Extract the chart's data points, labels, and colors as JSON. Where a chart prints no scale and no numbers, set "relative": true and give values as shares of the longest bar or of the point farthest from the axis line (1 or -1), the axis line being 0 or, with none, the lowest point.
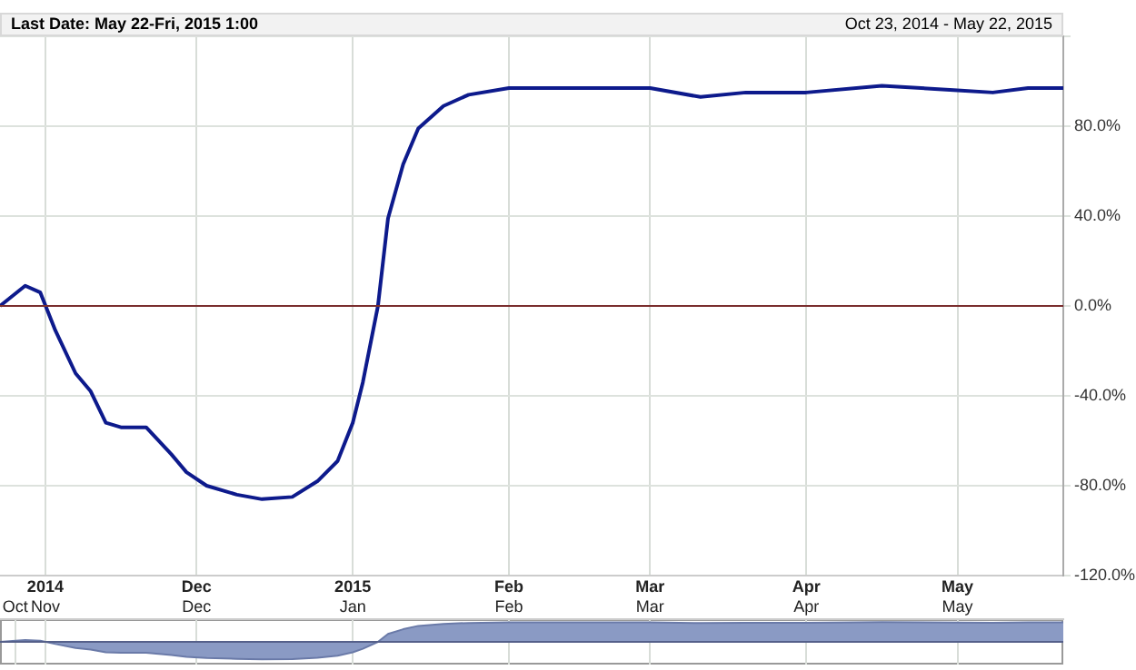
{
  "chart_data": [
    {
      "type": "line",
      "title": "Last Date: May 22-Fri, 2015 1:00",
      "subtitle": "Oct 23, 2014 - May 22, 2015",
      "x": [
        "2014-10-23",
        "2014-10-28",
        "2014-10-31",
        "2014-11-03",
        "2014-11-07",
        "2014-11-10",
        "2014-11-13",
        "2014-11-16",
        "2014-11-21",
        "2014-11-26",
        "2014-11-29",
        "2014-12-03",
        "2014-12-09",
        "2014-12-14",
        "2014-12-20",
        "2014-12-25",
        "2014-12-29",
        "2015-01-01",
        "2015-01-03",
        "2015-01-06",
        "2015-01-08",
        "2015-01-11",
        "2015-01-14",
        "2015-01-19",
        "2015-01-24",
        "2015-02-01",
        "2015-02-15",
        "2015-03-01",
        "2015-03-11",
        "2015-03-20",
        "2015-04-01",
        "2015-04-16",
        "2015-05-01",
        "2015-05-08",
        "2015-05-15",
        "2015-05-22"
      ],
      "series": [
        {
          "color": "#0d1a8c",
          "values": [
            0,
            9,
            6,
            -11,
            -30,
            -38,
            -52,
            -54,
            -54,
            -66,
            -74,
            -80,
            -84,
            -86,
            -85,
            -78,
            -69,
            -52,
            -34,
            0,
            39,
            63,
            79,
            89,
            94,
            97,
            97,
            97,
            93,
            95,
            95,
            98,
            96,
            95,
            97,
            97
          ]
        }
      ],
      "xlim": [
        "2014-10-23",
        "2015-05-22"
      ],
      "xticks": [
        {
          "value": "2014-11-01",
          "label": "2014"
        },
        {
          "value": "2014-12-01",
          "label": "Dec"
        },
        {
          "value": "2015-01-01",
          "label": "2015"
        },
        {
          "value": "2015-02-01",
          "label": "Feb"
        },
        {
          "value": "2015-03-01",
          "label": "Mar"
        },
        {
          "value": "2015-04-01",
          "label": "Apr"
        },
        {
          "value": "2015-05-01",
          "label": "May"
        }
      ],
      "ylim": [
        -120,
        120
      ],
      "yticks": [
        {
          "value": -120,
          "label": "-120.0%"
        },
        {
          "value": -80,
          "label": "-80.0%"
        },
        {
          "value": -40,
          "label": "-40.0%"
        },
        {
          "value": 0,
          "label": "0.0%"
        },
        {
          "value": 40,
          "label": "40.0%"
        },
        {
          "value": 80,
          "label": "80.0%"
        },
        {
          "value": 120,
          "label": null
        }
      ],
      "ref_lines": [
        {
          "axis": "y",
          "value": 0,
          "color": "#7a2e2e"
        }
      ],
      "grid": true
    },
    {
      "type": "area",
      "relative": true,
      "x": [
        "2014-10-23",
        "2014-10-28",
        "2014-10-31",
        "2014-11-03",
        "2014-11-07",
        "2014-11-10",
        "2014-11-13",
        "2014-11-16",
        "2014-11-21",
        "2014-11-26",
        "2014-11-29",
        "2014-12-03",
        "2014-12-09",
        "2014-12-14",
        "2014-12-20",
        "2014-12-25",
        "2014-12-29",
        "2015-01-01",
        "2015-01-03",
        "2015-01-06",
        "2015-01-08",
        "2015-01-11",
        "2015-01-14",
        "2015-01-19",
        "2015-01-24",
        "2015-02-01",
        "2015-02-15",
        "2015-03-01",
        "2015-03-11",
        "2015-03-20",
        "2015-04-01",
        "2015-04-16",
        "2015-05-01",
        "2015-05-08",
        "2015-05-15",
        "2015-05-22"
      ],
      "series": [
        {
          "color": "#8a9ac4",
          "values": [
            0,
            0.09,
            0.06,
            -0.11,
            -0.31,
            -0.39,
            -0.53,
            -0.55,
            -0.55,
            -0.67,
            -0.76,
            -0.82,
            -0.86,
            -0.88,
            -0.87,
            -0.8,
            -0.7,
            -0.53,
            -0.35,
            0,
            0.4,
            0.64,
            0.81,
            0.91,
            0.96,
            0.99,
            0.99,
            0.99,
            0.95,
            0.97,
            0.97,
            1,
            0.98,
            0.97,
            0.99,
            0.99
          ]
        }
      ],
      "xlim": [
        "2014-10-23",
        "2015-05-22"
      ],
      "xticks": [
        {
          "value": "2014-10-26",
          "label": "Oct"
        },
        {
          "value": "2014-11-01",
          "label": "Nov"
        },
        {
          "value": "2014-12-01",
          "label": "Dec"
        },
        {
          "value": "2015-01-01",
          "label": "Jan"
        },
        {
          "value": "2015-02-01",
          "label": "Feb"
        },
        {
          "value": "2015-03-01",
          "label": "Mar"
        },
        {
          "value": "2015-04-01",
          "label": "Apr"
        },
        {
          "value": "2015-05-01",
          "label": "May"
        }
      ],
      "ref_lines": [
        {
          "axis": "y",
          "value": 0,
          "color": "#55608a"
        }
      ],
      "grid": "x"
    }
  ]
}
